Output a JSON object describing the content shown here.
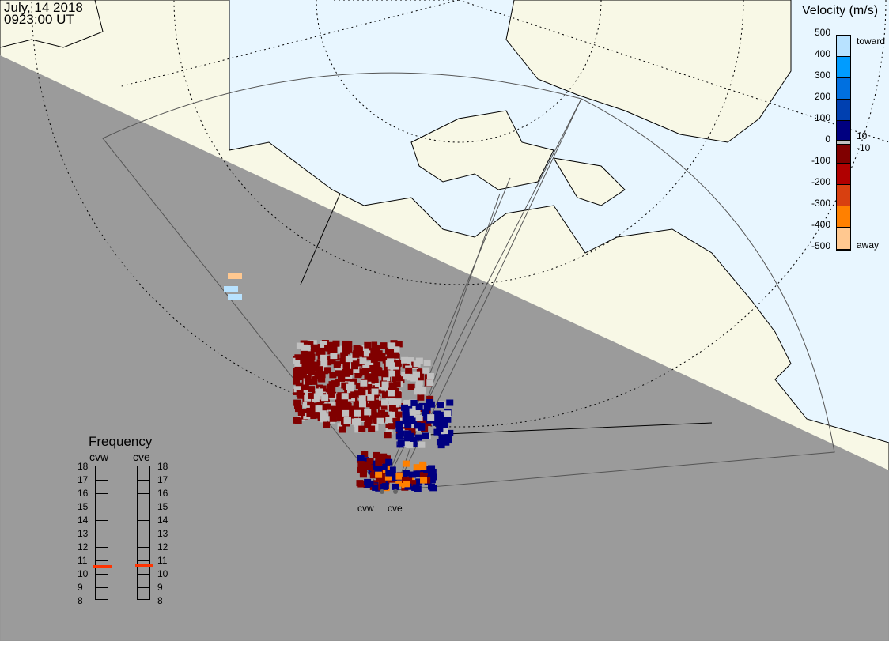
{
  "header": {
    "date": "July, 14 2018",
    "time": "0923:00 UT"
  },
  "colorbar": {
    "title": "Velocity (m/s)",
    "ticks": [
      "500",
      "400",
      "300",
      "200",
      "100",
      "0",
      "-100",
      "-200",
      "-300",
      "-400",
      "-500"
    ],
    "toward_label": "toward",
    "away_label": "away",
    "threshold_pos": "10",
    "threshold_neg": "-10",
    "colors": [
      "#b8e2ff",
      "#009cff",
      "#0070e0",
      "#0040b0",
      "#000080",
      "#c0c0c0",
      "#800000",
      "#b00000",
      "#d84010",
      "#ff8000",
      "#ffc890"
    ]
  },
  "frequency": {
    "title": "Frequency",
    "radars": [
      {
        "name": "cvw",
        "value_mhz": 10.6
      },
      {
        "name": "cve",
        "value_mhz": 10.65
      }
    ],
    "ticks": [
      "18",
      "17",
      "16",
      "15",
      "14",
      "13",
      "12",
      "11",
      "10",
      "9",
      "8"
    ],
    "range": [
      8,
      18
    ],
    "marker_color": "#ff3300"
  },
  "map": {
    "ocean_color": "#e8f6ff",
    "land_color": "#f8f8e6",
    "night_color": "#989898",
    "radar_labels": [
      "cvw",
      "cve"
    ]
  }
}
